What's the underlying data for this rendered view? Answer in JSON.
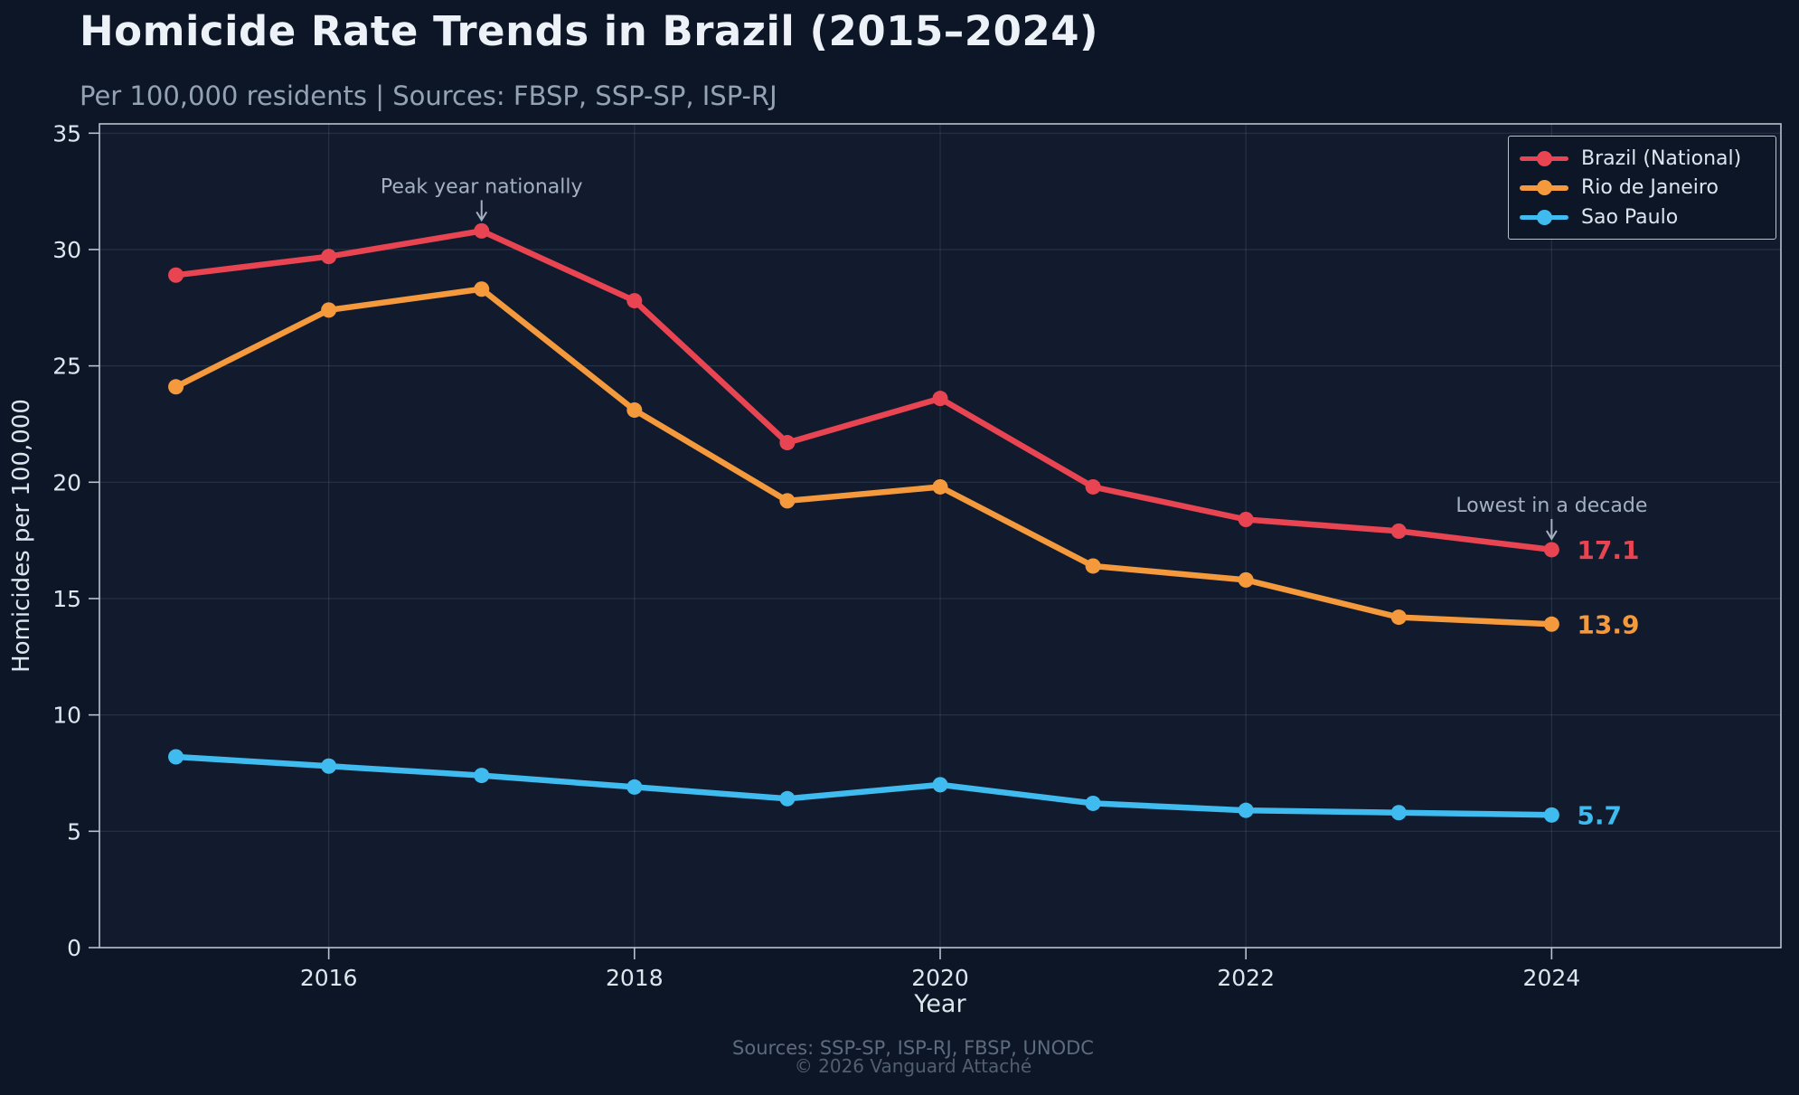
{
  "title": "Homicide Rate Trends in Brazil (2015–2024)",
  "subtitle": "Per 100,000 residents | Sources: FBSP, SSP-SP, ISP-RJ",
  "footer": {
    "sources": "Sources: SSP-SP, ISP-RJ, FBSP, UNODC",
    "copyright": "© 2026 Vanguard Attaché"
  },
  "colors": {
    "figure_bg": "#0d1626",
    "plot_bg": "#111b2d",
    "grid": "rgba(145,165,192,0.16)",
    "spine": "#b6c2ce",
    "tick_label": "#dde5ee",
    "axis_label": "#dde5ee",
    "annotation": "#a3b1c2",
    "red": "#e94452",
    "orange": "#f5993d",
    "blue": "#3fbbf0"
  },
  "chart_data": {
    "type": "line",
    "title": "Homicide Rate Trends in Brazil (2015–2024)",
    "xlabel": "Year",
    "ylabel": "Homicides per 100,000",
    "x": [
      2015,
      2016,
      2017,
      2018,
      2019,
      2020,
      2021,
      2022,
      2023,
      2024
    ],
    "xticks": [
      2016,
      2018,
      2020,
      2022,
      2024
    ],
    "yticks": [
      0,
      5,
      10,
      15,
      20,
      25,
      30,
      35
    ],
    "xlim": [
      2014.5,
      2025.5
    ],
    "ylim": [
      0,
      35.4
    ],
    "grid": true,
    "legend_position": "top-right",
    "series": [
      {
        "name": "Brazil (National)",
        "color": "#e94452",
        "values": [
          28.9,
          29.7,
          30.8,
          27.8,
          21.7,
          23.6,
          19.8,
          18.4,
          17.9,
          17.1
        ],
        "end_label": "17.1"
      },
      {
        "name": "Rio de Janeiro",
        "color": "#f5993d",
        "values": [
          24.1,
          27.4,
          28.3,
          23.1,
          19.2,
          19.8,
          16.4,
          15.8,
          14.2,
          13.9
        ],
        "end_label": "13.9"
      },
      {
        "name": "Sao Paulo",
        "color": "#3fbbf0",
        "values": [
          8.2,
          7.8,
          7.4,
          6.9,
          6.4,
          7.0,
          6.2,
          5.9,
          5.8,
          5.7
        ],
        "end_label": "5.7"
      }
    ],
    "annotations": [
      {
        "text": "Peak year nationally",
        "x": 2017,
        "y": 30.8
      },
      {
        "text": "Lowest in a decade",
        "x": 2024,
        "y": 17.1
      }
    ]
  }
}
